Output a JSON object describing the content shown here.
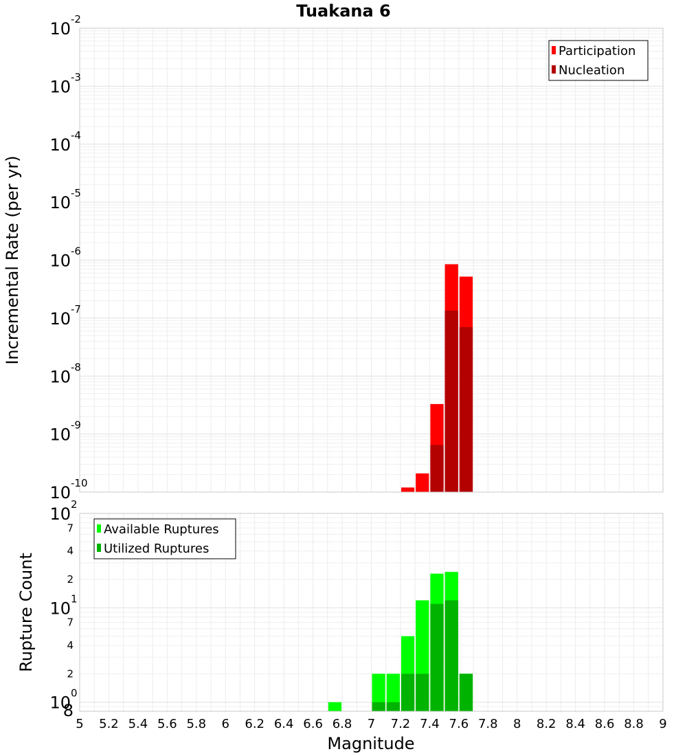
{
  "chart_data": [
    {
      "type": "bar",
      "title": "Tuakana 6",
      "ylabel": "Incremental Rate (per yr)",
      "xlabel": "",
      "xlim": [
        5,
        9
      ],
      "ylim": [
        1e-10,
        0.01
      ],
      "y_scale": "log",
      "grid": true,
      "bin_width": 0.1,
      "y_tick_labels": [
        {
          "base": "10",
          "exp": "-10",
          "value": 1e-10
        },
        {
          "base": "10",
          "exp": "-9",
          "value": 1e-09
        },
        {
          "base": "10",
          "exp": "-8",
          "value": 1e-08
        },
        {
          "base": "10",
          "exp": "-7",
          "value": 1e-07
        },
        {
          "base": "10",
          "exp": "-6",
          "value": 1e-06
        },
        {
          "base": "10",
          "exp": "-5",
          "value": 1e-05
        },
        {
          "base": "10",
          "exp": "-4",
          "value": 0.0001
        },
        {
          "base": "10",
          "exp": "-3",
          "value": 0.001
        },
        {
          "base": "10",
          "exp": "-2",
          "value": 0.01
        }
      ],
      "legend": {
        "placement": "top-right",
        "entries": [
          "Participation",
          "Nucleation"
        ]
      },
      "series": [
        {
          "name": "Participation",
          "color": "#ff0000",
          "x": [
            7.25,
            7.35,
            7.45,
            7.55,
            7.65
          ],
          "values": [
            1.2e-10,
            2.1e-10,
            3.3e-09,
            8.5e-07,
            5.2e-07
          ]
        },
        {
          "name": "Nucleation",
          "color": "#b30000",
          "x": [
            7.45,
            7.55,
            7.65
          ],
          "values": [
            6.5e-10,
            1.35e-07,
            7e-08
          ]
        }
      ]
    },
    {
      "type": "bar",
      "title": "",
      "ylabel": "Rupture Count",
      "xlabel": "Magnitude",
      "xlim": [
        5,
        9
      ],
      "ylim": [
        0.8,
        100
      ],
      "y_scale": "log",
      "grid": true,
      "bin_width": 0.1,
      "x_ticks": [
        "5",
        "5.2",
        "5.4",
        "5.6",
        "5.8",
        "6",
        "6.2",
        "6.4",
        "6.6",
        "6.8",
        "7",
        "7.2",
        "7.4",
        "7.6",
        "7.8",
        "8",
        "8.2",
        "8.4",
        "8.6",
        "8.8",
        "9"
      ],
      "y_tick_labels": [
        {
          "base": "10",
          "exp": "0",
          "value": 1
        },
        {
          "base": "10",
          "exp": "1",
          "value": 10
        },
        {
          "base": "10",
          "exp": "2",
          "value": 100
        }
      ],
      "y_minor_labels": [
        {
          "label": "2",
          "value": 2
        },
        {
          "label": "4",
          "value": 4
        },
        {
          "label": "7",
          "value": 7
        },
        {
          "label": "2",
          "value": 20
        },
        {
          "label": "4",
          "value": 40
        },
        {
          "label": "7",
          "value": 70
        }
      ],
      "y_bottom_label": "8",
      "legend": {
        "placement": "top-left",
        "entries": [
          "Available Ruptures",
          "Utilized Ruptures"
        ]
      },
      "series": [
        {
          "name": "Available Ruptures",
          "color": "#00ff00",
          "x": [
            6.75,
            7.05,
            7.15,
            7.25,
            7.35,
            7.45,
            7.55,
            7.65
          ],
          "values": [
            1,
            2,
            2,
            5,
            12,
            23,
            24,
            2
          ]
        },
        {
          "name": "Utilized Ruptures",
          "color": "#00b300",
          "x": [
            7.05,
            7.15,
            7.25,
            7.35,
            7.45,
            7.55,
            7.65
          ],
          "values": [
            1,
            1,
            2,
            2,
            11,
            12,
            2
          ]
        }
      ]
    }
  ]
}
